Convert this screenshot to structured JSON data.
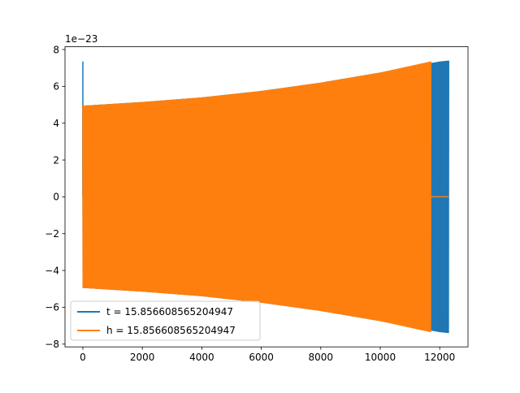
{
  "chart_data": {
    "type": "line",
    "title": "",
    "xlabel": "",
    "ylabel": "",
    "offset_text": "1e−23",
    "xlim": [
      -600,
      12950
    ],
    "ylim": [
      -8.15,
      8.15
    ],
    "x_ticks": [
      0,
      2000,
      4000,
      6000,
      8000,
      10000,
      12000
    ],
    "x_tick_labels": [
      "0",
      "2000",
      "4000",
      "6000",
      "8000",
      "10000",
      "12000"
    ],
    "y_ticks": [
      -8,
      -6,
      -4,
      -2,
      0,
      2,
      4,
      6,
      8
    ],
    "y_tick_labels": [
      "−8",
      "−6",
      "−4",
      "−2",
      "0",
      "2",
      "4",
      "6",
      "8"
    ],
    "grid": false,
    "legend_position": "lower-left",
    "series": [
      {
        "name": "t = 15.856608565204947",
        "color": "#1f77b4",
        "envelope": {
          "x": [
            0,
            2000,
            4000,
            6000,
            8000,
            10000,
            12000,
            12300
          ],
          "amplitude": [
            4.95,
            5.15,
            5.4,
            5.75,
            6.2,
            6.75,
            7.35,
            7.4
          ]
        },
        "initial_spike": {
          "x": 0,
          "y": 7.35
        },
        "end_x": 12300
      },
      {
        "name": "h = 15.856608565204947",
        "color": "#ff7f0e",
        "envelope": {
          "x": [
            0,
            2000,
            4000,
            6000,
            8000,
            10000,
            11700
          ],
          "amplitude": [
            4.95,
            5.15,
            5.4,
            5.75,
            6.2,
            6.75,
            7.35
          ]
        },
        "end_x": 11700,
        "zero_tail": {
          "from": 11700,
          "to": 12300
        }
      }
    ]
  }
}
